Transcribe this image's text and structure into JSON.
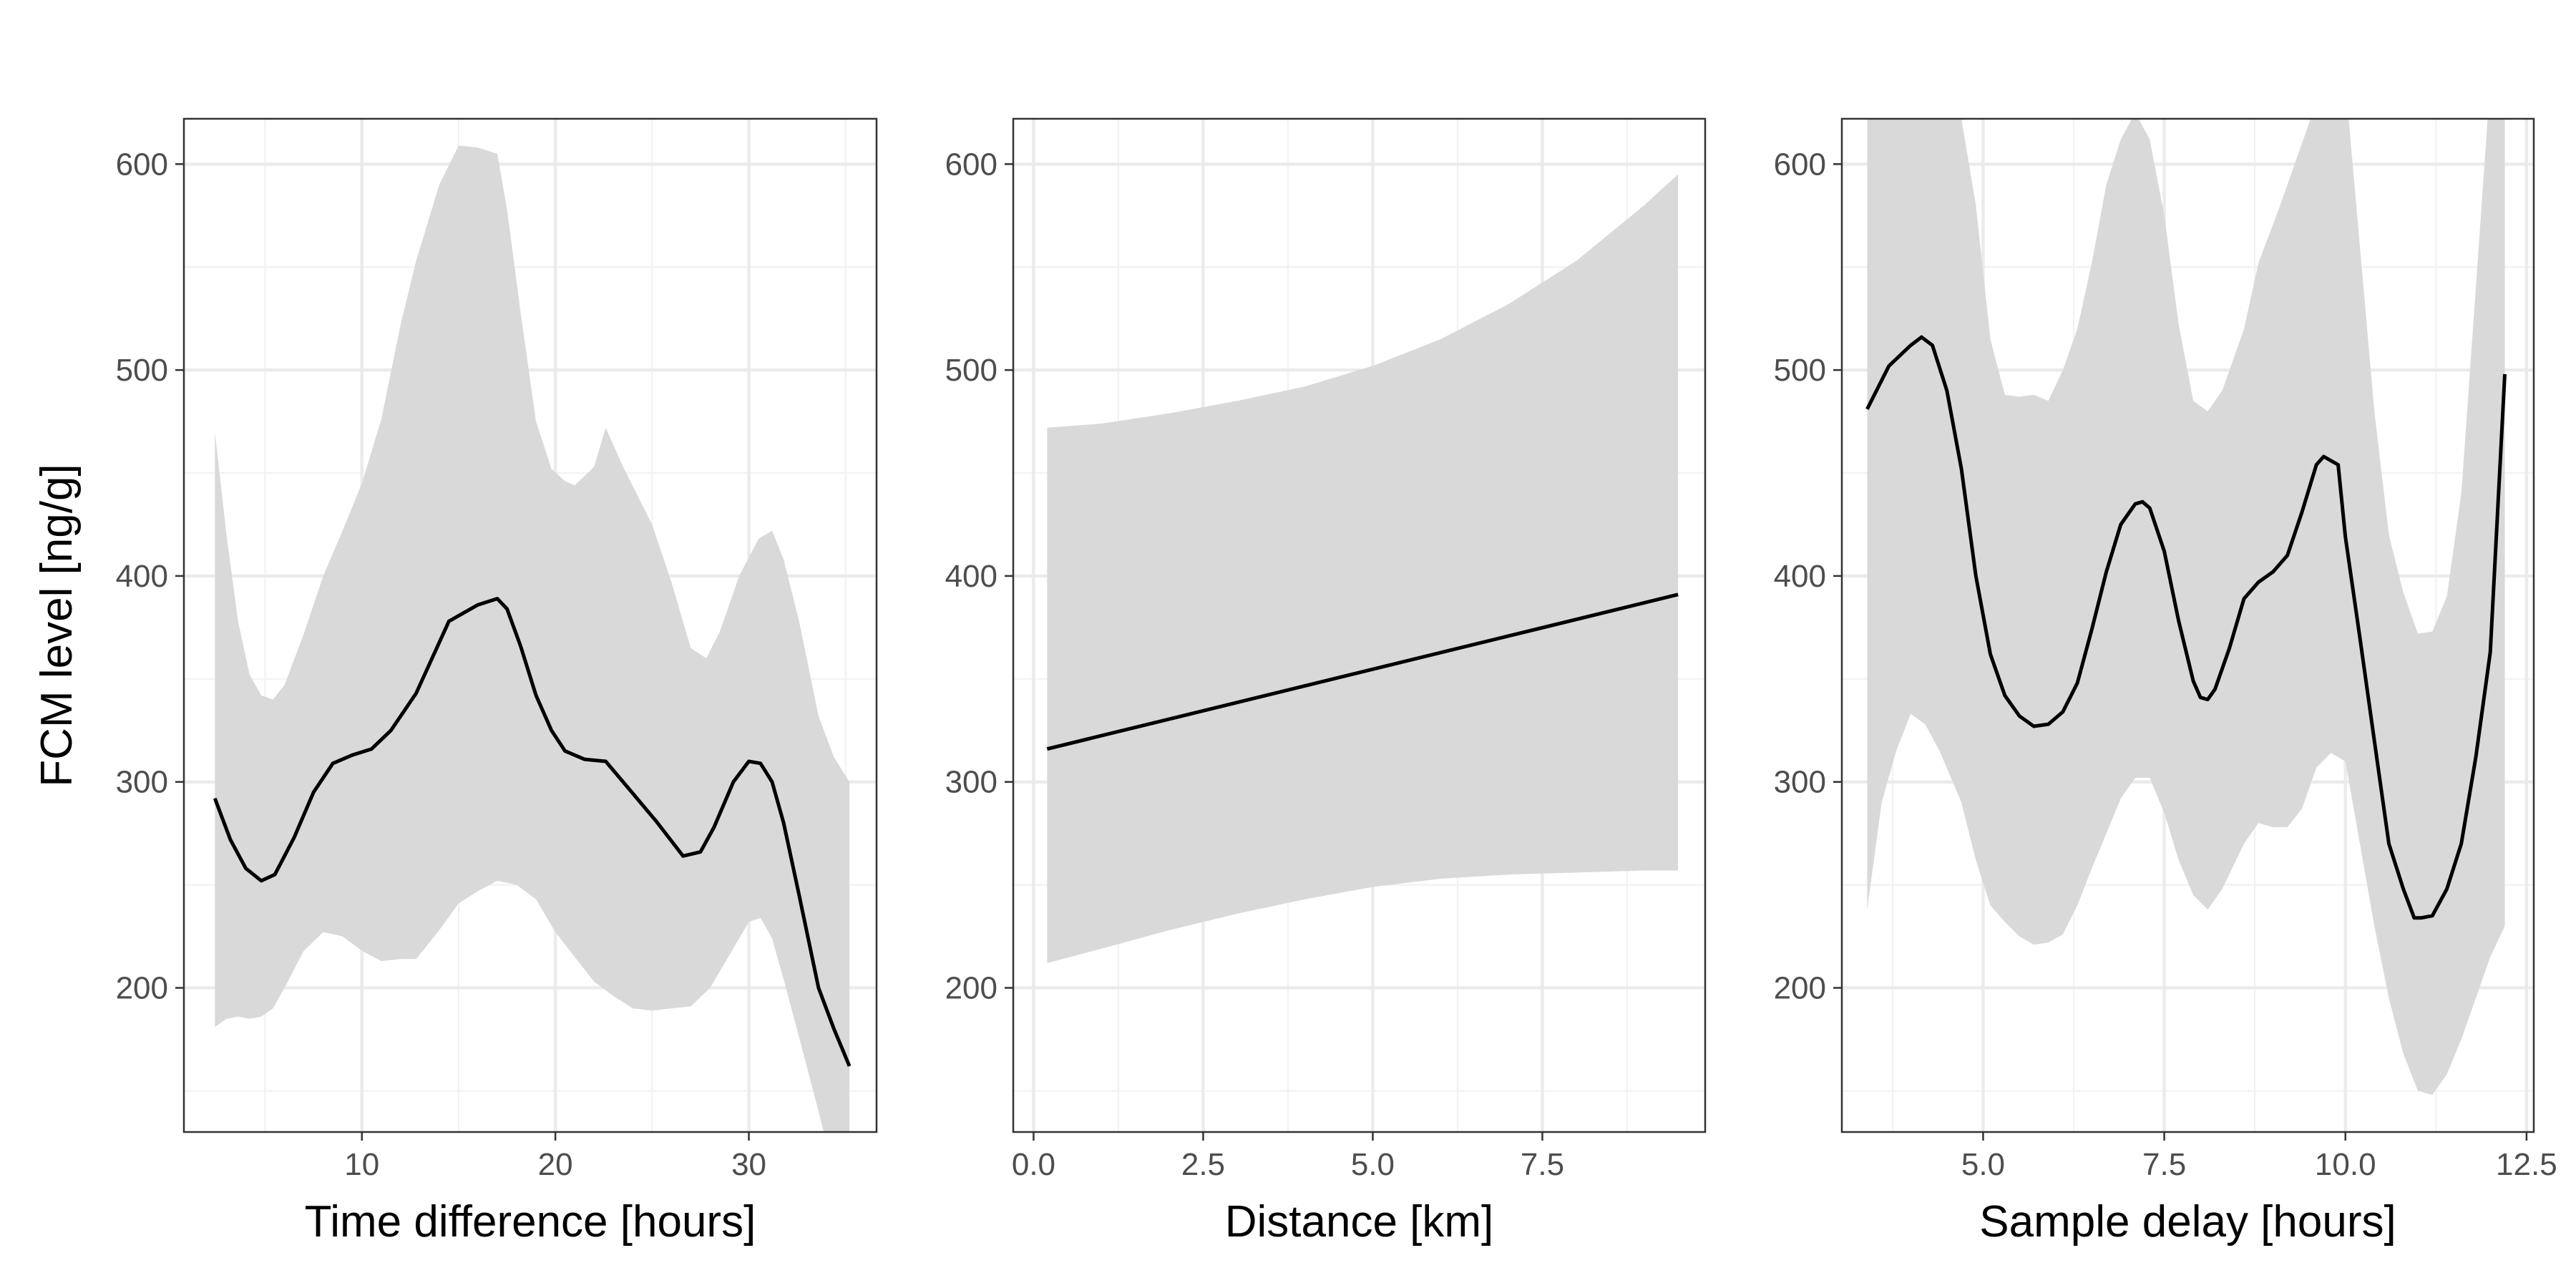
{
  "figure": {
    "ylabel": "FCM level [ng/g]"
  },
  "chart_data": [
    {
      "type": "line",
      "xlabel": "Time difference [hours]",
      "ylabel": "FCM level [ng/g]",
      "xlim": [
        0.8,
        36.6
      ],
      "ylim": [
        130,
        622
      ],
      "xticks": [
        10,
        20,
        30
      ],
      "xtick_labels": [
        "10",
        "20",
        "30"
      ],
      "yticks": [
        200,
        300,
        400,
        500,
        600
      ],
      "ytick_labels": [
        "200",
        "300",
        "400",
        "500",
        "600"
      ],
      "grid": true,
      "series": [
        {
          "x": [
            2.4,
            3.2,
            4.0,
            4.8,
            5.5,
            6.5,
            7.5,
            8.5,
            9.5,
            10.5,
            11.5,
            12.8,
            14.5,
            16.0,
            17.0,
            17.5,
            18.2,
            19.0,
            19.8,
            20.5,
            21.5,
            22.6,
            23.5,
            25.2,
            26.6,
            27.5,
            28.2,
            29.2,
            30.0,
            30.6,
            31.2,
            31.8,
            32.6,
            33.6,
            34.4,
            35.2
          ],
          "y": [
            292,
            272,
            258,
            252,
            255,
            273,
            295,
            309,
            313,
            316,
            325,
            343,
            378,
            386,
            389,
            384,
            366,
            342,
            325,
            315,
            311,
            310,
            300,
            281,
            264,
            266,
            278,
            300,
            310,
            309,
            300,
            280,
            245,
            200,
            180,
            162
          ]
        }
      ],
      "band_upper": {
        "x": [
          2.4,
          3.0,
          3.6,
          4.2,
          4.8,
          5.4,
          6.0,
          7.0,
          8.0,
          9.0,
          10.0,
          11.0,
          12.0,
          12.8,
          14.0,
          15.0,
          16.0,
          17.0,
          17.5,
          18.2,
          19.0,
          19.8,
          20.5,
          21.0,
          22.0,
          22.6,
          23.5,
          25.0,
          26.0,
          27.0,
          27.8,
          28.5,
          29.5,
          30.5,
          31.2,
          31.8,
          32.6,
          33.6,
          34.4,
          35.2
        ],
        "y": [
          470,
          420,
          378,
          352,
          342,
          340,
          347,
          372,
          400,
          422,
          445,
          476,
          522,
          553,
          590,
          609,
          608,
          605,
          578,
          528,
          475,
          452,
          446,
          444,
          453,
          472,
          453,
          425,
          397,
          365,
          360,
          373,
          400,
          418,
          422,
          408,
          378,
          332,
          312,
          300
        ]
      },
      "band_lower": {
        "x": [
          2.4,
          3.0,
          3.6,
          4.2,
          4.8,
          5.4,
          6.0,
          7.0,
          8.0,
          9.0,
          10.0,
          11.0,
          12.0,
          12.8,
          14.0,
          15.0,
          16.0,
          17.0,
          18.0,
          19.0,
          20.0,
          21.0,
          22.0,
          23.0,
          24.0,
          25.0,
          26.0,
          27.0,
          28.0,
          29.0,
          30.0,
          30.6,
          31.2,
          31.8,
          32.6,
          33.6,
          34.4,
          35.2
        ],
        "y": [
          181,
          185,
          186,
          185,
          186,
          190,
          200,
          218,
          227,
          225,
          218,
          213,
          214,
          214,
          228,
          241,
          247,
          252,
          250,
          243,
          227,
          215,
          203,
          196,
          190,
          189,
          190,
          191,
          200,
          216,
          232,
          234,
          224,
          204,
          176,
          140,
          110,
          110
        ]
      },
      "colors": {
        "line": "#000000",
        "band": "#d9d9d9"
      }
    },
    {
      "type": "line",
      "xlabel": "Distance [km]",
      "ylabel": "",
      "xlim": [
        -0.3,
        9.9
      ],
      "ylim": [
        130,
        622
      ],
      "xticks": [
        0.0,
        2.5,
        5.0,
        7.5
      ],
      "xtick_labels": [
        "0.0",
        "2.5",
        "5.0",
        "7.5"
      ],
      "yticks": [
        200,
        300,
        400,
        500,
        600
      ],
      "ytick_labels": [
        "200",
        "300",
        "400",
        "500",
        "600"
      ],
      "grid": true,
      "series": [
        {
          "x": [
            0.2,
            9.5
          ],
          "y": [
            316,
            391
          ]
        }
      ],
      "band_upper": {
        "x": [
          0.2,
          1.0,
          2.0,
          3.0,
          4.0,
          5.0,
          6.0,
          7.0,
          8.0,
          9.0,
          9.5
        ],
        "y": [
          472,
          474,
          479,
          485,
          492,
          502,
          515,
          532,
          553,
          580,
          595
        ]
      },
      "band_lower": {
        "x": [
          0.2,
          1.0,
          2.0,
          3.0,
          4.0,
          5.0,
          6.0,
          7.0,
          8.0,
          9.0,
          9.5
        ],
        "y": [
          212,
          219,
          228,
          236,
          243,
          249,
          253,
          255,
          256,
          257,
          257
        ]
      },
      "colors": {
        "line": "#000000",
        "band": "#d9d9d9"
      }
    },
    {
      "type": "line",
      "xlabel": "Sample delay [hours]",
      "ylabel": "",
      "xlim": [
        3.05,
        12.6
      ],
      "ylim": [
        130,
        622
      ],
      "xticks": [
        5.0,
        7.5,
        10.0,
        12.5
      ],
      "xtick_labels": [
        "5.0",
        "7.5",
        "10.0",
        "12.5"
      ],
      "yticks": [
        200,
        300,
        400,
        500,
        600
      ],
      "ytick_labels": [
        "200",
        "300",
        "400",
        "500",
        "600"
      ],
      "grid": true,
      "series": [
        {
          "x": [
            3.4,
            3.7,
            4.0,
            4.15,
            4.3,
            4.5,
            4.7,
            4.9,
            5.1,
            5.3,
            5.5,
            5.7,
            5.9,
            6.1,
            6.3,
            6.5,
            6.7,
            6.9,
            7.1,
            7.2,
            7.3,
            7.5,
            7.7,
            7.9,
            8.0,
            8.1,
            8.2,
            8.4,
            8.6,
            8.8,
            9.0,
            9.2,
            9.4,
            9.6,
            9.7,
            9.8,
            9.9,
            10.0,
            10.2,
            10.4,
            10.6,
            10.8,
            10.95,
            11.05,
            11.2,
            11.4,
            11.6,
            11.8,
            12.0,
            12.2
          ],
          "y": [
            481,
            502,
            512,
            516,
            512,
            490,
            452,
            400,
            362,
            342,
            332,
            327,
            328,
            334,
            348,
            374,
            402,
            425,
            435,
            436,
            433,
            412,
            378,
            349,
            341,
            340,
            345,
            365,
            389,
            397,
            402,
            410,
            431,
            454,
            458,
            456,
            454,
            419,
            370,
            320,
            270,
            248,
            234,
            234,
            235,
            248,
            270,
            312,
            363,
            498
          ]
        }
      ],
      "band_upper": {
        "x": [
          3.4,
          3.7,
          4.0,
          4.4,
          4.7,
          4.9,
          5.1,
          5.3,
          5.5,
          5.7,
          5.9,
          6.1,
          6.3,
          6.5,
          6.7,
          6.9,
          7.1,
          7.3,
          7.5,
          7.7,
          7.9,
          8.1,
          8.3,
          8.6,
          8.8,
          9.1,
          9.4,
          9.7,
          10.0,
          10.2,
          10.4,
          10.6,
          10.8,
          11.0,
          11.2,
          11.4,
          11.6,
          11.8,
          12.0,
          12.2
        ],
        "y": [
          622,
          622,
          622,
          622,
          622,
          580,
          515,
          488,
          487,
          488,
          485,
          500,
          520,
          552,
          590,
          612,
          625,
          612,
          575,
          522,
          485,
          480,
          490,
          520,
          552,
          580,
          610,
          640,
          640,
          560,
          480,
          420,
          392,
          372,
          373,
          390,
          440,
          540,
          640,
          640
        ]
      },
      "band_lower": {
        "x": [
          3.4,
          3.6,
          3.8,
          4.0,
          4.2,
          4.4,
          4.7,
          4.9,
          5.1,
          5.3,
          5.5,
          5.7,
          5.9,
          6.1,
          6.3,
          6.5,
          6.7,
          6.9,
          7.1,
          7.3,
          7.5,
          7.7,
          7.9,
          8.1,
          8.3,
          8.6,
          8.8,
          9.0,
          9.2,
          9.4,
          9.6,
          9.8,
          10.0,
          10.2,
          10.4,
          10.6,
          10.8,
          11.0,
          11.2,
          11.4,
          11.6,
          11.8,
          12.0,
          12.2
        ],
        "y": [
          238,
          290,
          315,
          333,
          328,
          315,
          290,
          262,
          240,
          232,
          225,
          221,
          222,
          226,
          240,
          258,
          275,
          292,
          302,
          302,
          285,
          262,
          245,
          238,
          248,
          270,
          280,
          278,
          278,
          287,
          307,
          314,
          310,
          270,
          230,
          195,
          168,
          150,
          148,
          158,
          175,
          195,
          215,
          230
        ]
      },
      "colors": {
        "line": "#000000",
        "band": "#d9d9d9"
      }
    }
  ]
}
